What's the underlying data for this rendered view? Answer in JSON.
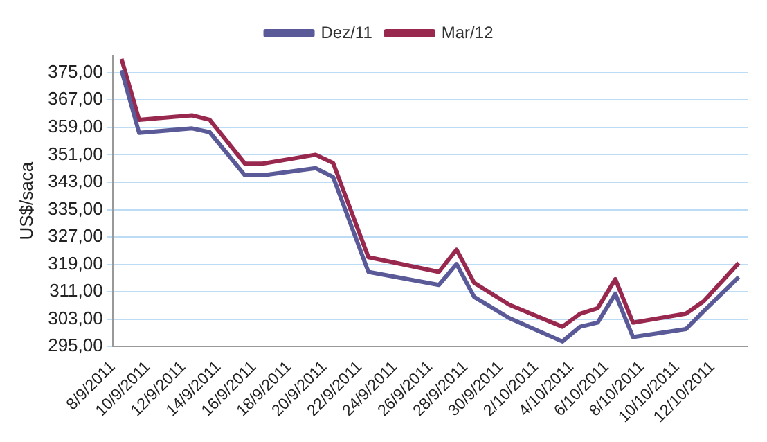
{
  "chart_data": {
    "type": "line",
    "ylabel": "US$/saca",
    "legend": "top",
    "grid": "y",
    "marker": "none",
    "line_style": "solid",
    "ylim": [
      295,
      380
    ],
    "yticks": [
      {
        "value": 295,
        "label": "295,00"
      },
      {
        "value": 303,
        "label": "303,00"
      },
      {
        "value": 311,
        "label": "311,00"
      },
      {
        "value": 319,
        "label": "319,00"
      },
      {
        "value": 327,
        "label": "327,00"
      },
      {
        "value": 335,
        "label": "335,00"
      },
      {
        "value": 343,
        "label": "343,00"
      },
      {
        "value": 351,
        "label": "351,00"
      },
      {
        "value": 359,
        "label": "359,00"
      },
      {
        "value": 367,
        "label": "367,00"
      },
      {
        "value": 375,
        "label": "375,00"
      }
    ],
    "xlim": [
      "2011-09-08",
      "2011-10-14"
    ],
    "xticks": [
      {
        "value": "2011-09-08",
        "label": "8/9/2011"
      },
      {
        "value": "2011-09-10",
        "label": "10/9/2011"
      },
      {
        "value": "2011-09-12",
        "label": "12/9/2011"
      },
      {
        "value": "2011-09-14",
        "label": "14/9/2011"
      },
      {
        "value": "2011-09-16",
        "label": "16/9/2011"
      },
      {
        "value": "2011-09-18",
        "label": "18/9/2011"
      },
      {
        "value": "2011-09-20",
        "label": "20/9/2011"
      },
      {
        "value": "2011-09-22",
        "label": "22/9/2011"
      },
      {
        "value": "2011-09-24",
        "label": "24/9/2011"
      },
      {
        "value": "2011-09-26",
        "label": "26/9/2011"
      },
      {
        "value": "2011-09-28",
        "label": "28/9/2011"
      },
      {
        "value": "2011-09-30",
        "label": "30/9/2011"
      },
      {
        "value": "2011-10-02",
        "label": "2/10/2011"
      },
      {
        "value": "2011-10-04",
        "label": "4/10/2011"
      },
      {
        "value": "2011-10-06",
        "label": "6/10/2011"
      },
      {
        "value": "2011-10-08",
        "label": "8/10/2011"
      },
      {
        "value": "2011-10-10",
        "label": "10/10/2011"
      },
      {
        "value": "2011-10-12",
        "label": "12/10/2011"
      }
    ],
    "x": [
      "2011-09-08T12:00",
      "2011-09-09T12:00",
      "2011-09-12T12:00",
      "2011-09-13T12:00",
      "2011-09-15T12:00",
      "2011-09-16T12:00",
      "2011-09-19T12:00",
      "2011-09-20T12:00",
      "2011-09-22T12:00",
      "2011-09-26T12:00",
      "2011-09-27T12:00",
      "2011-09-28T12:00",
      "2011-09-30T12:00",
      "2011-10-03T12:00",
      "2011-10-04T12:00",
      "2011-10-05T12:00",
      "2011-10-06T12:00",
      "2011-10-07T12:00",
      "2011-10-10T12:00",
      "2011-10-11T12:00",
      "2011-10-13T12:00"
    ],
    "series": [
      {
        "name": "Dez/11",
        "color": "#5b5a99",
        "values": [
          375.7,
          357.4,
          358.7,
          357.6,
          345.0,
          345.0,
          347.1,
          344.5,
          316.8,
          313.0,
          319.1,
          309.5,
          303.3,
          296.5,
          300.8,
          302.0,
          310.4,
          297.8,
          300.1,
          305.3,
          315.3
        ]
      },
      {
        "name": "Mar/12",
        "color": "#99284f",
        "values": [
          379.0,
          361.2,
          362.5,
          361.2,
          348.4,
          348.4,
          351.0,
          348.6,
          321.1,
          316.8,
          323.3,
          313.6,
          307.2,
          300.8,
          304.6,
          306.2,
          314.7,
          302.0,
          304.6,
          308.2,
          319.4
        ]
      }
    ]
  }
}
